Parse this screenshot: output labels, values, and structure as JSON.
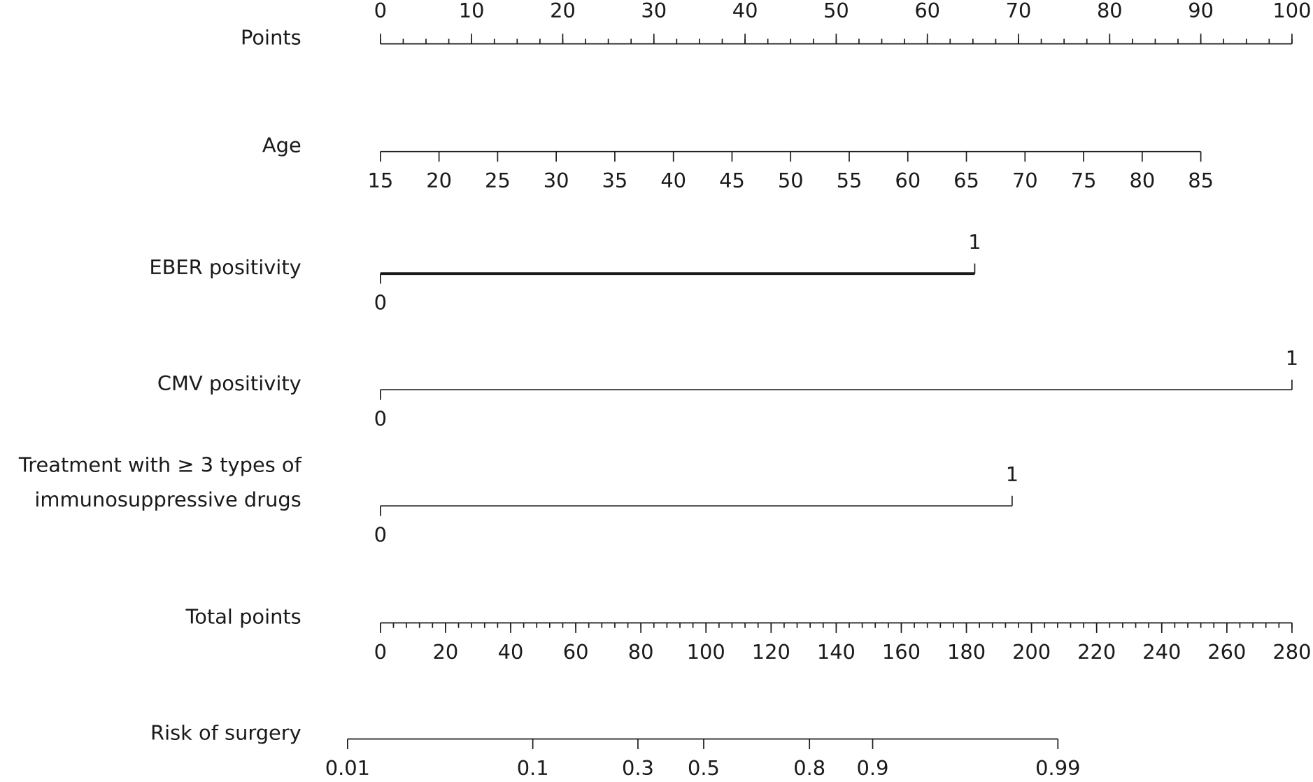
{
  "chart_data": {
    "type": "nomogram",
    "xlim": [
      0,
      100
    ],
    "rows": [
      {
        "label": [
          "Points"
        ],
        "ticks": [
          0,
          10,
          20,
          30,
          40,
          50,
          60,
          70,
          80,
          90,
          100
        ],
        "minor_step": 2.5
      },
      {
        "label": [
          "Age"
        ],
        "ticks": [
          15,
          20,
          25,
          30,
          35,
          40,
          45,
          50,
          55,
          60,
          65,
          70,
          75,
          80,
          85
        ],
        "range": [
          15,
          85
        ],
        "points_range": [
          0,
          90
        ]
      },
      {
        "label": [
          "EBER positivity"
        ],
        "ticks": [
          0,
          1
        ],
        "points": [
          0,
          65.2
        ],
        "thick": true
      },
      {
        "label": [
          "CMV positivity"
        ],
        "ticks": [
          0,
          1
        ],
        "points": [
          0,
          100
        ]
      },
      {
        "label": [
          "Treatment with ≥ 3 types of",
          "immunosuppressive drugs"
        ],
        "ticks": [
          0,
          1
        ],
        "points": [
          0,
          69.3
        ]
      },
      {
        "label": [
          "Total points"
        ],
        "ticks": [
          0,
          20,
          40,
          60,
          80,
          100,
          120,
          140,
          160,
          180,
          200,
          220,
          240,
          260,
          280
        ],
        "range": [
          0,
          280
        ],
        "minor_step": 4
      },
      {
        "label": [
          "Risk of surgery"
        ],
        "ticks": [
          0.01,
          0.1,
          0.3,
          0.5,
          0.8,
          0.9,
          0.99
        ],
        "total_points": [
          -10.1,
          46.8,
          79.1,
          99.3,
          131.8,
          151.2,
          208.1
        ]
      }
    ]
  }
}
